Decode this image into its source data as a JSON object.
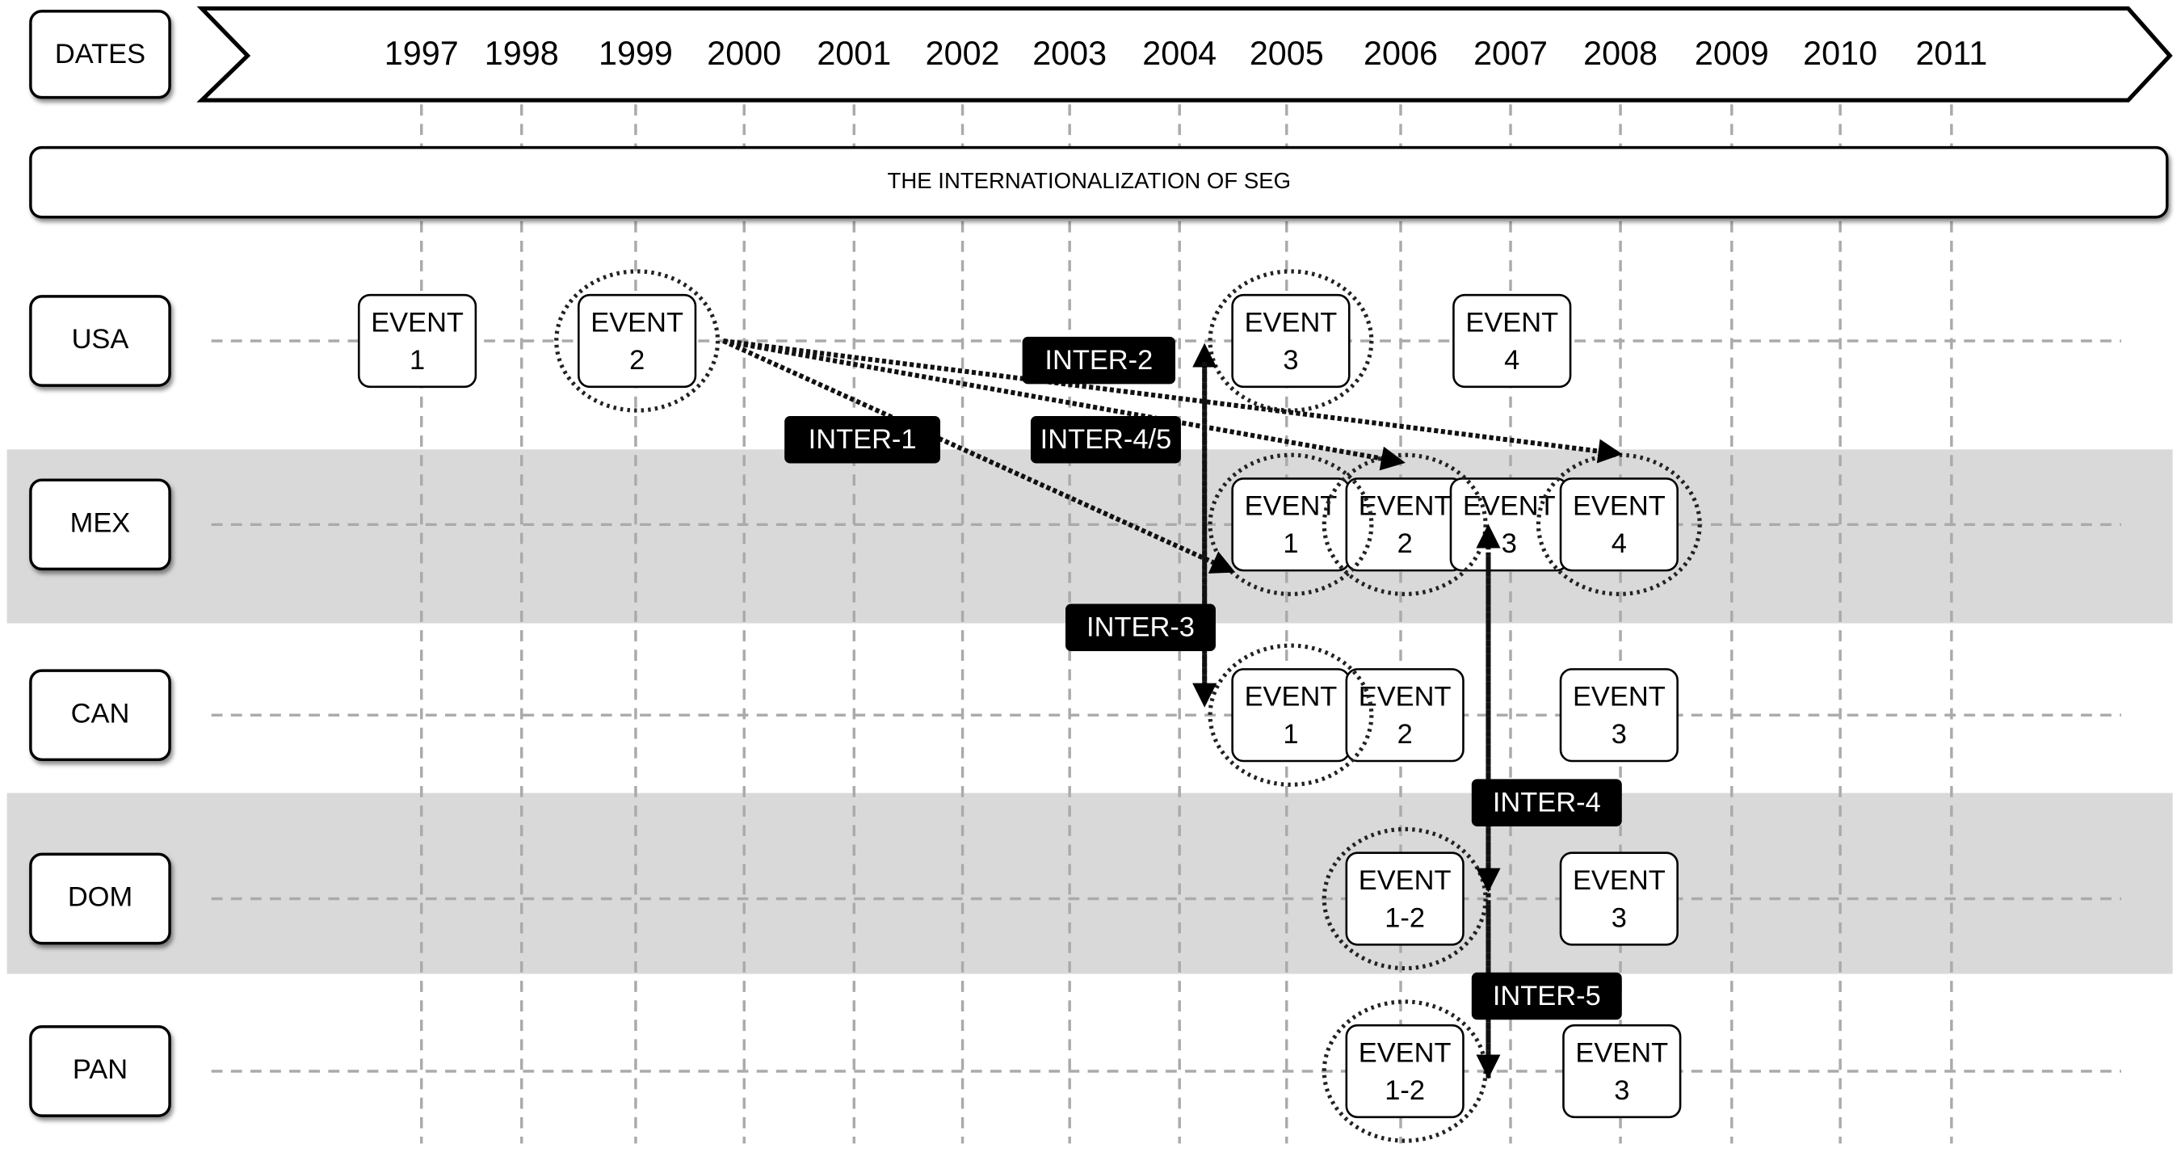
{
  "header": {
    "label": "DATES",
    "years": [
      "1997",
      "1998",
      "1999",
      "2000",
      "2001",
      "2002",
      "2003",
      "2004",
      "2005",
      "2006",
      "2007",
      "2008",
      "2009",
      "2010",
      "2011"
    ]
  },
  "title": "THE INTERNATIONALIZATION OF SEG",
  "rows": [
    {
      "label": "USA",
      "events": [
        {
          "line1": "EVENT",
          "line2": "1"
        },
        {
          "line1": "EVENT",
          "line2": "2"
        },
        {
          "line1": "EVENT",
          "line2": "3"
        },
        {
          "line1": "EVENT",
          "line2": "4"
        }
      ]
    },
    {
      "label": "MEX",
      "events": [
        {
          "line1": "EVENT",
          "line2": "1"
        },
        {
          "line1": "EVENT",
          "line2": "2"
        },
        {
          "line1": "EVENT",
          "line2": "3"
        },
        {
          "line1": "EVENT",
          "line2": "4"
        }
      ]
    },
    {
      "label": "CAN",
      "events": [
        {
          "line1": "EVENT",
          "line2": "1"
        },
        {
          "line1": "EVENT",
          "line2": "2"
        },
        {
          "line1": "EVENT",
          "line2": "3"
        }
      ]
    },
    {
      "label": "DOM",
      "events": [
        {
          "line1": "EVENT",
          "line2": "1-2"
        },
        {
          "line1": "EVENT",
          "line2": "3"
        }
      ]
    },
    {
      "label": "PAN",
      "events": [
        {
          "line1": "EVENT",
          "line2": "1-2"
        },
        {
          "line1": "EVENT",
          "line2": "3"
        }
      ]
    }
  ],
  "interactions": [
    "INTER-2",
    "INTER-1",
    "INTER-4/5",
    "INTER-3",
    "INTER-4",
    "INTER-5"
  ]
}
